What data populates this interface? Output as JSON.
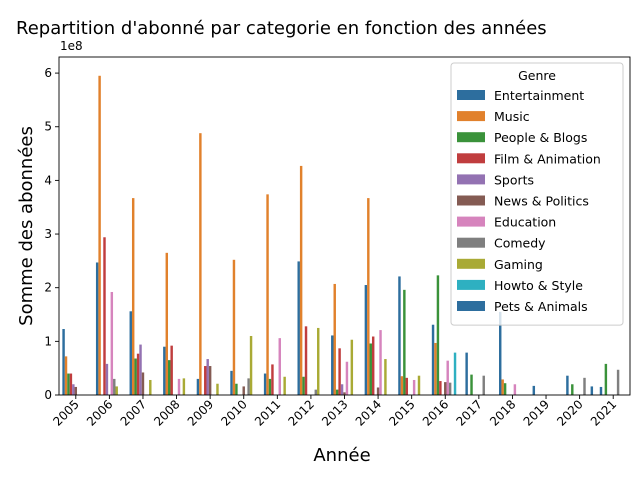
{
  "chart_data": {
    "type": "bar",
    "title": "Repartition d'abonné par categorie en fonction des années",
    "xlabel": "Année",
    "ylabel": "Somme des abonnées",
    "y_multiplier_label": "1e8",
    "y_unit_multiplier": 100000000,
    "ylim": [
      0,
      6.3
    ],
    "yticks": [
      0,
      1,
      2,
      3,
      4,
      5,
      6
    ],
    "grid": false,
    "legend": {
      "title": "Genre",
      "placement": "top-right"
    },
    "categories": [
      "2005",
      "2006",
      "2007",
      "2008",
      "2009",
      "2010",
      "2011",
      "2012",
      "2013",
      "2014",
      "2015",
      "2016",
      "2017",
      "2018",
      "2019",
      "2020",
      "2021"
    ],
    "series": [
      {
        "name": "Entertainment",
        "color": "#2d6e9e",
        "values": [
          1.23,
          2.47,
          1.56,
          0.9,
          0.3,
          0.45,
          0.4,
          2.49,
          1.11,
          2.05,
          2.21,
          1.31,
          0.79,
          1.55,
          0.17,
          0.36,
          0.15
        ]
      },
      {
        "name": "Music",
        "color": "#e1812c",
        "values": [
          0.72,
          5.95,
          3.67,
          2.65,
          4.88,
          2.52,
          3.74,
          4.27,
          2.07,
          3.67,
          0.35,
          0.97,
          0,
          0.29,
          0,
          0,
          0
        ]
      },
      {
        "name": "People & Blogs",
        "color": "#3a923a",
        "values": [
          0.4,
          0,
          0.68,
          0.65,
          0,
          0.21,
          0.3,
          0.34,
          0.1,
          0.96,
          1.96,
          2.23,
          0.38,
          0.22,
          0,
          0.2,
          0.58
        ]
      },
      {
        "name": "Film & Animation",
        "color": "#c03d3e",
        "values": [
          0.4,
          2.94,
          0.77,
          0.92,
          0.54,
          0,
          0.57,
          1.28,
          0.87,
          1.09,
          0.32,
          0.26,
          0,
          0,
          0,
          0,
          0
        ]
      },
      {
        "name": "Sports",
        "color": "#9372b2",
        "values": [
          0.2,
          0.58,
          0.94,
          0,
          0.67,
          0,
          0,
          0,
          0.2,
          0,
          0,
          0,
          0,
          0,
          0,
          0,
          0
        ]
      },
      {
        "name": "News & Politics",
        "color": "#845b53",
        "values": [
          0.15,
          0,
          0.42,
          0,
          0.54,
          0.16,
          0,
          0,
          0.05,
          0.14,
          0,
          0.24,
          0,
          0,
          0,
          0,
          0
        ]
      },
      {
        "name": "Education",
        "color": "#d684bd",
        "values": [
          0,
          1.92,
          0,
          0.3,
          0,
          0,
          1.06,
          0,
          0.62,
          1.21,
          0.28,
          0.64,
          0,
          0.2,
          0,
          0,
          0
        ]
      },
      {
        "name": "Comedy",
        "color": "#7f7f7f",
        "values": [
          0,
          0.3,
          0,
          0,
          0,
          0.31,
          0,
          0.1,
          0,
          0,
          0,
          0.23,
          0.36,
          0,
          0,
          0.32,
          0.47
        ]
      },
      {
        "name": "Gaming",
        "color": "#a9aa35",
        "values": [
          0,
          0.16,
          0.28,
          0.31,
          0.21,
          1.1,
          0.34,
          1.25,
          1.03,
          0.67,
          0.36,
          0,
          0,
          0,
          0,
          0,
          0
        ]
      },
      {
        "name": "Howto & Style",
        "color": "#2eb0c1",
        "values": [
          0,
          0,
          0,
          0,
          0,
          0,
          0,
          0,
          0,
          0,
          0,
          0.79,
          0,
          0,
          0,
          0,
          0
        ]
      },
      {
        "name": "Pets & Animals",
        "color": "#2d6e9e",
        "values": [
          0,
          0,
          0,
          0,
          0,
          0,
          0,
          0,
          0,
          0,
          0,
          0,
          0,
          0,
          0,
          0.16,
          0
        ]
      }
    ]
  }
}
